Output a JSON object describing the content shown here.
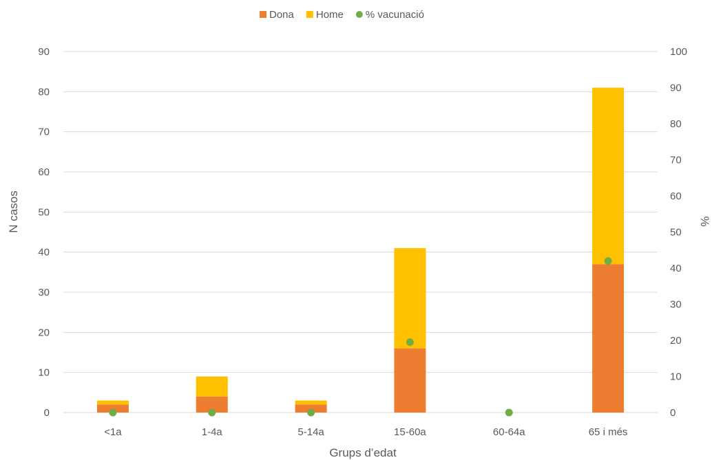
{
  "chart_data": {
    "type": "bar",
    "categories": [
      "<1a",
      "1-4a",
      "5-14a",
      "15-60a",
      "60-64a",
      "65 i més"
    ],
    "series": [
      {
        "name": "Dona",
        "type": "bar",
        "axis": "left",
        "color": "#ed7d31",
        "values": [
          2,
          4,
          2,
          16,
          0,
          37
        ]
      },
      {
        "name": "Home",
        "type": "bar",
        "axis": "left",
        "color": "#ffc000",
        "values": [
          1,
          5,
          1,
          25,
          0,
          44
        ]
      },
      {
        "name": "% vacunació",
        "type": "scatter",
        "axis": "right",
        "color": "#70ad47",
        "values": [
          0,
          0,
          0,
          19.5,
          0,
          42
        ]
      }
    ],
    "stacked": true,
    "xlabel": "Grups d’edat",
    "ylabel": "N casos",
    "y2label": "%",
    "ylim": [
      0,
      90
    ],
    "y2lim": [
      0,
      100
    ],
    "yticks": [
      "0",
      "10",
      "20",
      "30",
      "40",
      "50",
      "60",
      "70",
      "80",
      "90"
    ],
    "y2ticks": [
      "0",
      "10",
      "20",
      "30",
      "40",
      "50",
      "60",
      "70",
      "80",
      "90",
      "100"
    ],
    "legend_position": "top",
    "grid": true
  }
}
